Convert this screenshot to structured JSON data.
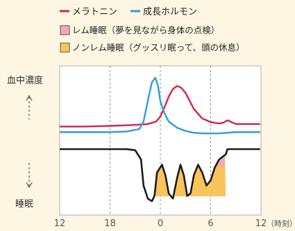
{
  "legend": {
    "melatonin": "メラトニン",
    "growth_hormone": "成長ホルモン",
    "rem": "レム睡眠（夢を見ながら身体の点検）",
    "nonrem": "ノンレム睡眠（グッスリ眠って、頭の休息）"
  },
  "colors": {
    "background": "#fdf6e3",
    "plot_background": "#ffffff",
    "melatonin": "#d6224a",
    "growth_hormone": "#2f9cd6",
    "sleep_line": "#1a1a1a",
    "rem_fill": "#f4a7b2",
    "nonrem_fill": "#f9c45b",
    "axis_text": "#555555",
    "grid": "#777777"
  },
  "chart_data": {
    "type": "line",
    "x_ticks": [
      "12",
      "18",
      "0",
      "6",
      "12"
    ],
    "x_unit": "（時刻）",
    "x_range": [
      12,
      36
    ],
    "ylabel_top": "血中濃度",
    "ylabel_bottom": "睡眠",
    "grid": "vertical dashed",
    "legend_position": "top",
    "series": [
      {
        "name": "メラトニン",
        "x": [
          12,
          15,
          18,
          20,
          21.5,
          22.5,
          23.5,
          24,
          24.5,
          25,
          25.5,
          26,
          26.5,
          27,
          27.5,
          28,
          29,
          30,
          31,
          31.5,
          32,
          33,
          36
        ],
        "y": [
          0.14,
          0.14,
          0.15,
          0.16,
          0.17,
          0.18,
          0.22,
          0.3,
          0.45,
          0.62,
          0.74,
          0.79,
          0.76,
          0.68,
          0.55,
          0.42,
          0.27,
          0.21,
          0.19,
          0.2,
          0.24,
          0.18,
          0.18
        ]
      },
      {
        "name": "成長ホルモン",
        "x": [
          12,
          18,
          20,
          21.5,
          22,
          22.5,
          23,
          23.4,
          23.7,
          24,
          24.5,
          25,
          26,
          27,
          28,
          29,
          30,
          31,
          32,
          33,
          36
        ],
        "y": [
          0.05,
          0.05,
          0.06,
          0.1,
          0.22,
          0.55,
          0.85,
          0.92,
          0.8,
          0.55,
          0.35,
          0.22,
          0.12,
          0.07,
          0.04,
          0.03,
          0.03,
          0.03,
          0.04,
          0.05,
          0.05
        ]
      }
    ],
    "sleep_profile": {
      "description_none": "",
      "x": [
        12,
        20,
        21,
        21.7,
        22,
        22.5,
        23,
        23.3,
        23.6,
        24.2,
        24.6,
        25,
        25.5,
        26,
        26.4,
        26.8,
        27.2,
        27.6,
        28,
        28.5,
        29,
        29.5,
        30,
        30.5,
        31,
        31.4,
        31.8,
        32,
        33,
        36
      ],
      "depth": [
        0,
        0,
        0.02,
        0.2,
        0.7,
        0.95,
        1.0,
        0.9,
        0.45,
        0.3,
        0.5,
        0.85,
        0.95,
        0.55,
        0.3,
        0.5,
        0.9,
        0.85,
        0.5,
        0.3,
        0.45,
        0.7,
        0.6,
        0.35,
        0.2,
        0.15,
        0.1,
        0.0,
        0.0,
        0.0
      ],
      "rem_periods": [
        [
          24.2,
          25.2
        ],
        [
          25.9,
          27.0
        ],
        [
          27.8,
          28.9
        ],
        [
          29.8,
          31.7
        ]
      ],
      "nonrem_range": [
        23.3,
        31.8
      ]
    }
  }
}
